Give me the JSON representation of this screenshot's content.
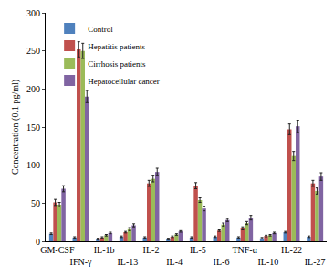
{
  "chart_data": {
    "type": "bar",
    "y_label": "Concentration (0.1 pg/ml)",
    "categories": [
      "GM-CSF",
      "IFN-γ",
      "IL-1b",
      "IL-13",
      "IL-2",
      "IL-4",
      "IL-5",
      "IL-6",
      "TNF-α",
      "IL-10",
      "IL-22",
      "IL-27"
    ],
    "series": [
      {
        "name": "Control",
        "color": "#4f81bd",
        "values": [
          10,
          5,
          3,
          6,
          5,
          3,
          5,
          6,
          5,
          4,
          12,
          6
        ],
        "errors": [
          1,
          1,
          1,
          1,
          1,
          1,
          1,
          1,
          1,
          1,
          1,
          1
        ]
      },
      {
        "name": "Hepatitis patients",
        "color": "#c0504d",
        "values": [
          51,
          252,
          5,
          12,
          76,
          6,
          73,
          14,
          17,
          7,
          147,
          76
        ],
        "errors": [
          4,
          10,
          1,
          1,
          4,
          1,
          4,
          1,
          2,
          1,
          7,
          4
        ]
      },
      {
        "name": "Cirrhosis patients",
        "color": "#9bbb59",
        "values": [
          48,
          250,
          8,
          16,
          82,
          9,
          54,
          22,
          24,
          8,
          112,
          66
        ],
        "errors": [
          3,
          10,
          1,
          2,
          4,
          1,
          3,
          2,
          2,
          1,
          6,
          4
        ]
      },
      {
        "name": "Hepatocellular cancer",
        "color": "#8064a2",
        "values": [
          69,
          190,
          11,
          21,
          91,
          13,
          43,
          28,
          31,
          11,
          151,
          85
        ],
        "errors": [
          4,
          8,
          1,
          2,
          5,
          1,
          3,
          2,
          3,
          1,
          8,
          5
        ]
      }
    ],
    "ylim": [
      0,
      300
    ],
    "yticks": [
      0,
      50,
      100,
      150,
      200,
      250,
      300
    ],
    "legend": "upper left",
    "grid": false
  }
}
